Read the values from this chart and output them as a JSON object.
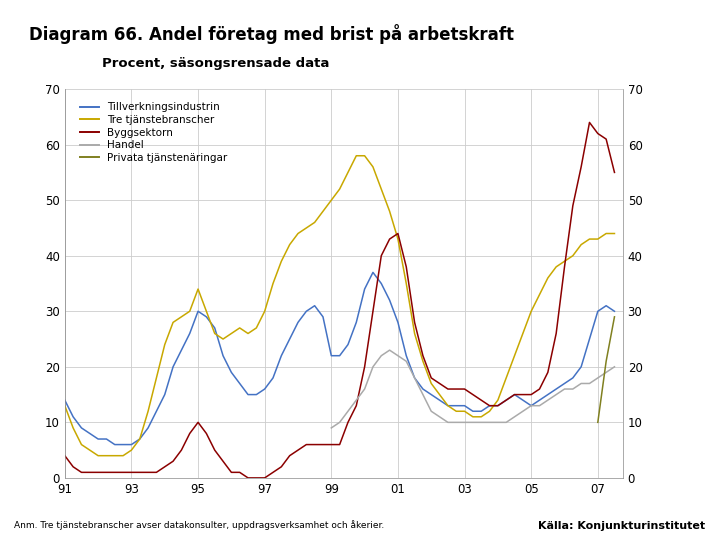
{
  "title": "Diagram 66. Andel företag med brist på arbetskraft",
  "subtitle": "Procent, säsongsrensade data",
  "footer_left": "Anm. Tre tjänstebranscher avser datakonsulter, uppdragsverksamhet och åkerier.",
  "footer_right": "Källa: Konjunkturinstitutet",
  "ylim": [
    0,
    70
  ],
  "yticks": [
    0,
    10,
    20,
    30,
    40,
    50,
    60,
    70
  ],
  "xtick_vals": [
    1991,
    1993,
    1995,
    1997,
    1999,
    2001,
    2003,
    2005,
    2007
  ],
  "xtick_labels": [
    "91",
    "93",
    "95",
    "97",
    "99",
    "01",
    "03",
    "05",
    "07"
  ],
  "background_color": "#FFFFFF",
  "grid_color": "#CCCCCC",
  "footer_color": "#1F3864",
  "logo_color": "#1F3864",
  "legend": [
    {
      "label": "Tillverkningsindustrin",
      "color": "#4472C4"
    },
    {
      "label": "Tre tjänstebranscher",
      "color": "#C8A800"
    },
    {
      "label": "Byggsektorn",
      "color": "#8B0000"
    },
    {
      "label": "Handel",
      "color": "#AAAAAA"
    },
    {
      "label": "Privata tjänstenäringar",
      "color": "#808020"
    }
  ],
  "series": {
    "Tillverkningsindustrin": {
      "color": "#4472C4",
      "x": [
        1991.0,
        1991.25,
        1991.5,
        1991.75,
        1992.0,
        1992.25,
        1992.5,
        1992.75,
        1993.0,
        1993.25,
        1993.5,
        1993.75,
        1994.0,
        1994.25,
        1994.5,
        1994.75,
        1995.0,
        1995.25,
        1995.5,
        1995.75,
        1996.0,
        1996.25,
        1996.5,
        1996.75,
        1997.0,
        1997.25,
        1997.5,
        1997.75,
        1998.0,
        1998.25,
        1998.5,
        1998.75,
        1999.0,
        1999.25,
        1999.5,
        1999.75,
        2000.0,
        2000.25,
        2000.5,
        2000.75,
        2001.0,
        2001.25,
        2001.5,
        2001.75,
        2002.0,
        2002.25,
        2002.5,
        2002.75,
        2003.0,
        2003.25,
        2003.5,
        2003.75,
        2004.0,
        2004.25,
        2004.5,
        2004.75,
        2005.0,
        2005.25,
        2005.5,
        2005.75,
        2006.0,
        2006.25,
        2006.5,
        2006.75,
        2007.0,
        2007.25,
        2007.5
      ],
      "y": [
        14,
        11,
        9,
        8,
        7,
        7,
        6,
        6,
        6,
        7,
        9,
        12,
        15,
        20,
        23,
        26,
        30,
        29,
        27,
        22,
        19,
        17,
        15,
        15,
        16,
        18,
        22,
        25,
        28,
        30,
        31,
        29,
        22,
        22,
        24,
        28,
        34,
        37,
        35,
        32,
        28,
        22,
        18,
        16,
        15,
        14,
        13,
        13,
        13,
        12,
        12,
        13,
        13,
        14,
        15,
        14,
        13,
        14,
        15,
        16,
        17,
        18,
        20,
        25,
        30,
        31,
        30
      ]
    },
    "Tre tjänstebranscher": {
      "color": "#C8A800",
      "x": [
        1991.0,
        1991.25,
        1991.5,
        1991.75,
        1992.0,
        1992.25,
        1992.5,
        1992.75,
        1993.0,
        1993.25,
        1993.5,
        1993.75,
        1994.0,
        1994.25,
        1994.5,
        1994.75,
        1995.0,
        1995.25,
        1995.5,
        1995.75,
        1996.0,
        1996.25,
        1996.5,
        1996.75,
        1997.0,
        1997.25,
        1997.5,
        1997.75,
        1998.0,
        1998.25,
        1998.5,
        1998.75,
        1999.0,
        1999.25,
        1999.5,
        1999.75,
        2000.0,
        2000.25,
        2000.5,
        2000.75,
        2001.0,
        2001.25,
        2001.5,
        2001.75,
        2002.0,
        2002.25,
        2002.5,
        2002.75,
        2003.0,
        2003.25,
        2003.5,
        2003.75,
        2004.0,
        2004.25,
        2004.5,
        2004.75,
        2005.0,
        2005.25,
        2005.5,
        2005.75,
        2006.0,
        2006.25,
        2006.5,
        2006.75,
        2007.0,
        2007.25,
        2007.5
      ],
      "y": [
        13,
        9,
        6,
        5,
        4,
        4,
        4,
        4,
        5,
        7,
        12,
        18,
        24,
        28,
        29,
        30,
        34,
        30,
        26,
        25,
        26,
        27,
        26,
        27,
        30,
        35,
        39,
        42,
        44,
        45,
        46,
        48,
        50,
        52,
        55,
        58,
        58,
        56,
        52,
        48,
        43,
        35,
        26,
        21,
        17,
        15,
        13,
        12,
        12,
        11,
        11,
        12,
        14,
        18,
        22,
        26,
        30,
        33,
        36,
        38,
        39,
        40,
        42,
        43,
        43,
        44,
        44
      ]
    },
    "Byggsektorn": {
      "color": "#8B0000",
      "x": [
        1991.0,
        1991.25,
        1991.5,
        1991.75,
        1992.0,
        1992.25,
        1992.5,
        1992.75,
        1993.0,
        1993.25,
        1993.5,
        1993.75,
        1994.0,
        1994.25,
        1994.5,
        1994.75,
        1995.0,
        1995.25,
        1995.5,
        1995.75,
        1996.0,
        1996.25,
        1996.5,
        1996.75,
        1997.0,
        1997.25,
        1997.5,
        1997.75,
        1998.0,
        1998.25,
        1998.5,
        1998.75,
        1999.0,
        1999.25,
        1999.5,
        1999.75,
        2000.0,
        2000.25,
        2000.5,
        2000.75,
        2001.0,
        2001.25,
        2001.5,
        2001.75,
        2002.0,
        2002.25,
        2002.5,
        2002.75,
        2003.0,
        2003.25,
        2003.5,
        2003.75,
        2004.0,
        2004.25,
        2004.5,
        2004.75,
        2005.0,
        2005.25,
        2005.5,
        2005.75,
        2006.0,
        2006.25,
        2006.5,
        2006.75,
        2007.0,
        2007.25,
        2007.5
      ],
      "y": [
        4,
        2,
        1,
        1,
        1,
        1,
        1,
        1,
        1,
        1,
        1,
        1,
        2,
        3,
        5,
        8,
        10,
        8,
        5,
        3,
        1,
        1,
        0,
        0,
        0,
        1,
        2,
        4,
        5,
        6,
        6,
        6,
        6,
        6,
        10,
        13,
        20,
        30,
        40,
        43,
        44,
        38,
        28,
        22,
        18,
        17,
        16,
        16,
        16,
        15,
        14,
        13,
        13,
        14,
        15,
        15,
        15,
        16,
        19,
        26,
        38,
        49,
        56,
        64,
        62,
        61,
        55
      ]
    },
    "Handel": {
      "color": "#AAAAAA",
      "x": [
        1999.0,
        1999.25,
        1999.5,
        1999.75,
        2000.0,
        2000.25,
        2000.5,
        2000.75,
        2001.0,
        2001.25,
        2001.5,
        2001.75,
        2002.0,
        2002.25,
        2002.5,
        2002.75,
        2003.0,
        2003.25,
        2003.5,
        2003.75,
        2004.0,
        2004.25,
        2004.5,
        2004.75,
        2005.0,
        2005.25,
        2005.5,
        2005.75,
        2006.0,
        2006.25,
        2006.5,
        2006.75,
        2007.0,
        2007.25,
        2007.5
      ],
      "y": [
        9,
        10,
        12,
        14,
        16,
        20,
        22,
        23,
        22,
        21,
        18,
        15,
        12,
        11,
        10,
        10,
        10,
        10,
        10,
        10,
        10,
        10,
        11,
        12,
        13,
        13,
        14,
        15,
        16,
        16,
        17,
        17,
        18,
        19,
        20
      ]
    },
    "Privata tjänstenäringar": {
      "color": "#808020",
      "x": [
        2007.0,
        2007.25,
        2007.5
      ],
      "y": [
        10,
        21,
        29
      ]
    }
  }
}
